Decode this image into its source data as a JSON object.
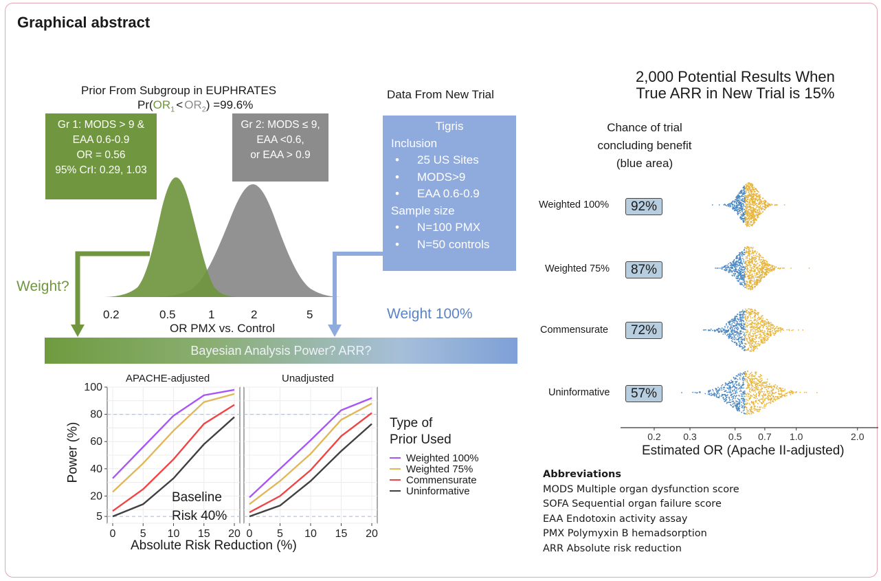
{
  "figure_title": "Graphical abstract",
  "prior": {
    "title": "Prior From Subgroup in EUPHRATES",
    "prob_prefix": "Pr(",
    "or1": "OR",
    "or1_sub": "1",
    "lt": "<",
    "or2": "OR",
    "or2_sub": "2",
    "prob_suffix": ") =99.6%",
    "group1_lines": [
      "Gr 1: MODS > 9 &",
      "EAA 0.6-0.9",
      "OR = 0.56",
      "95% CrI: 0.29, 1.03"
    ],
    "group2_lines": [
      "Gr 2: MODS ≤ 9,",
      "EAA <0.6,",
      "or EAA > 0.9"
    ],
    "axis_ticks": [
      "0.2",
      "0.5",
      "1",
      "2",
      "5"
    ],
    "axis_label": "OR PMX vs. Control",
    "weight_q": "Weight?",
    "colors": {
      "group1": "#70963f",
      "group2": "#8c8c8c",
      "new_trial": "#8faadc"
    }
  },
  "new_trial": {
    "title": "Data From New Trial",
    "name": "Tigris",
    "inclusion_label": "Inclusion",
    "inclusion_items": [
      "25 US Sites",
      "MODS>9",
      "EAA 0.6-0.9"
    ],
    "sample_label": "Sample size",
    "sample_items": [
      "N=100 PMX",
      "N=50 controls"
    ],
    "bullet": "•",
    "weight_label": "Weight 100%"
  },
  "bayes_bar": {
    "label": "Bayesian Analysis  Power? ARR?"
  },
  "chart_data": [
    {
      "type": "line",
      "panels": [
        "APACHE-adjusted",
        "Unadjusted"
      ],
      "x": [
        0,
        5,
        10,
        15,
        20
      ],
      "xlabel": "Absolute Risk Reduction (%)",
      "ylabel": "Power (%)",
      "yticks": [
        5,
        20,
        40,
        60,
        80,
        100
      ],
      "ylim": [
        0,
        100
      ],
      "xlim": [
        0,
        20
      ],
      "ref_lines": [
        5,
        80
      ],
      "legend_title_lines": [
        "Type of",
        "Prior Used"
      ],
      "annotation_lines": [
        "Baseline",
        "Risk 40%"
      ],
      "series": [
        {
          "name": "Weighted 100%",
          "color": "#a855f7",
          "apache": [
            33,
            56,
            79,
            94,
            98
          ],
          "unadjusted": [
            19,
            40,
            61,
            83,
            92
          ]
        },
        {
          "name": "Weighted 75%",
          "color": "#e0b85a",
          "apache": [
            23,
            44,
            68,
            89,
            95
          ],
          "unadjusted": [
            14,
            31,
            51,
            76,
            88
          ]
        },
        {
          "name": "Commensurate",
          "color": "#ef4444",
          "apache": [
            9,
            25,
            47,
            73,
            87
          ],
          "unadjusted": [
            8,
            20,
            39,
            64,
            81
          ]
        },
        {
          "name": "Uninformative",
          "color": "#404040",
          "apache": [
            5,
            14,
            33,
            58,
            78
          ],
          "unadjusted": [
            5,
            13,
            31,
            53,
            73
          ]
        }
      ]
    },
    {
      "type": "scatter",
      "title_lines": [
        "2,000 Potential Results When",
        "True ARR in New Trial is 15%"
      ],
      "subtitle_lines": [
        "Chance of trial",
        "concluding benefit",
        "(blue area)"
      ],
      "xlabel": "Estimated OR (Apache II-adjusted)",
      "xticks": [
        "0.2",
        "0.3",
        "0.5",
        "0.7",
        "1.0",
        "2.0"
      ],
      "x_scale": "log",
      "threshold_or": 0.56,
      "colors": {
        "benefit": "#4a86c0",
        "no_benefit": "#e6b43c"
      },
      "rows": [
        {
          "label": "Weighted 100%",
          "pct": "92%",
          "spread": 0.55
        },
        {
          "label": "Weighted 75%",
          "pct": "87%",
          "spread": 0.7
        },
        {
          "label": "Commensurate",
          "pct": "72%",
          "spread": 0.9
        },
        {
          "label": "Uninformative",
          "pct": "57%",
          "spread": 1.15
        }
      ]
    }
  ],
  "abbreviations": {
    "heading": "Abbreviations",
    "items": [
      "MODS  Multiple organ dysfunction score",
      "SOFA  Sequential organ failure score",
      "EAA  Endotoxin activity assay",
      "PMX  Polymyxin B hemadsorption",
      "ARR  Absolute risk reduction"
    ]
  }
}
